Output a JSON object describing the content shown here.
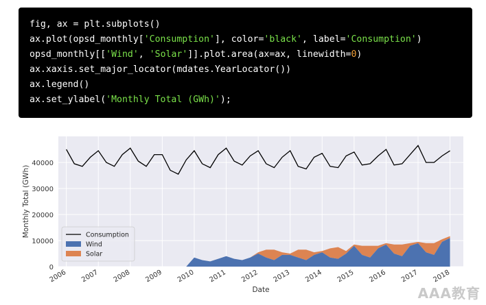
{
  "code": {
    "lines": [
      [
        {
          "t": "fig, ax = plt.subplots()"
        }
      ],
      [
        {
          "t": "ax.plot(opsd_monthly["
        },
        {
          "t": "'Consumption'",
          "c": "s"
        },
        {
          "t": "], color="
        },
        {
          "t": "'black'",
          "c": "s"
        },
        {
          "t": ", label="
        },
        {
          "t": "'Consumption'",
          "c": "s"
        },
        {
          "t": ")"
        }
      ],
      [
        {
          "t": "opsd_monthly[["
        },
        {
          "t": "'Wind'",
          "c": "s"
        },
        {
          "t": ", "
        },
        {
          "t": "'Solar'",
          "c": "s"
        },
        {
          "t": "]].plot.area(ax=ax, linewidth="
        },
        {
          "t": "0",
          "c": "n"
        },
        {
          "t": ")"
        }
      ],
      [
        {
          "t": "ax.xaxis.set_major_locator(mdates.YearLocator())"
        }
      ],
      [
        {
          "t": "ax.legend()"
        }
      ],
      [
        {
          "t": "ax.set_ylabel("
        },
        {
          "t": "'Monthly Total (GWh)'",
          "c": "s"
        },
        {
          "t": ");"
        }
      ]
    ]
  },
  "watermark": "AAA教育",
  "chart_data": {
    "type": "area",
    "xlabel": "Date",
    "ylabel": "Monthly Total (GWh)",
    "ylim": [
      0,
      50000
    ],
    "yticks": [
      0,
      10000,
      20000,
      30000,
      40000
    ],
    "ytick_labels": [
      "0",
      "10000",
      "20000",
      "30000",
      "40000"
    ],
    "xticks": [
      "2006",
      "2007",
      "2008",
      "2009",
      "2010",
      "2011",
      "2012",
      "2013",
      "2014",
      "2015",
      "2016",
      "2017",
      "2018"
    ],
    "xlim": [
      "2005-10",
      "2018-06"
    ],
    "grid": true,
    "legend_position": "lower-left",
    "colors": {
      "consumption": "#000000",
      "wind": "#4c72b0",
      "solar": "#dd8452",
      "background": "#eaeaf2",
      "grid": "#ffffff"
    },
    "x": [
      "2006-01",
      "2006-04",
      "2006-07",
      "2006-10",
      "2007-01",
      "2007-04",
      "2007-07",
      "2007-10",
      "2008-01",
      "2008-04",
      "2008-07",
      "2008-10",
      "2009-01",
      "2009-04",
      "2009-07",
      "2009-10",
      "2010-01",
      "2010-04",
      "2010-07",
      "2010-10",
      "2011-01",
      "2011-04",
      "2011-07",
      "2011-10",
      "2012-01",
      "2012-04",
      "2012-07",
      "2012-10",
      "2013-01",
      "2013-04",
      "2013-07",
      "2013-10",
      "2014-01",
      "2014-04",
      "2014-07",
      "2014-10",
      "2015-01",
      "2015-04",
      "2015-07",
      "2015-10",
      "2016-01",
      "2016-04",
      "2016-07",
      "2016-10",
      "2017-01",
      "2017-04",
      "2017-07",
      "2017-10",
      "2018-01"
    ],
    "series": [
      {
        "name": "Consumption",
        "values": [
          45000,
          39500,
          38500,
          42000,
          44500,
          40000,
          38500,
          43000,
          45500,
          40500,
          38500,
          43000,
          43000,
          37000,
          35500,
          41000,
          44500,
          39500,
          38000,
          43000,
          45500,
          40500,
          39000,
          42500,
          44500,
          39500,
          38000,
          42000,
          44500,
          38500,
          37500,
          42000,
          43500,
          38500,
          38000,
          42500,
          44000,
          39000,
          39500,
          42500,
          45000,
          39000,
          39500,
          43000,
          46500,
          40000,
          40000,
          42500,
          44500
        ]
      },
      {
        "name": "Wind",
        "values": [
          0,
          0,
          0,
          0,
          0,
          0,
          0,
          0,
          0,
          0,
          0,
          0,
          0,
          0,
          0,
          0,
          3500,
          2500,
          2000,
          3000,
          4000,
          3000,
          2500,
          3500,
          5000,
          3500,
          2500,
          4500,
          4500,
          3500,
          2500,
          4500,
          5500,
          3500,
          3000,
          5000,
          8000,
          4500,
          3500,
          7000,
          8500,
          5000,
          4000,
          8000,
          9000,
          5500,
          4500,
          9500,
          11000
        ]
      },
      {
        "name": "Solar",
        "values": [
          0,
          0,
          0,
          0,
          0,
          0,
          0,
          0,
          0,
          0,
          0,
          0,
          0,
          0,
          0,
          0,
          0,
          0,
          0,
          0,
          0,
          0,
          0,
          0,
          500,
          3000,
          4000,
          1000,
          500,
          3000,
          4000,
          1000,
          500,
          3500,
          4500,
          1000,
          500,
          3500,
          4500,
          1000,
          500,
          3500,
          4500,
          1000,
          500,
          3500,
          4500,
          1000,
          700
        ]
      }
    ]
  }
}
